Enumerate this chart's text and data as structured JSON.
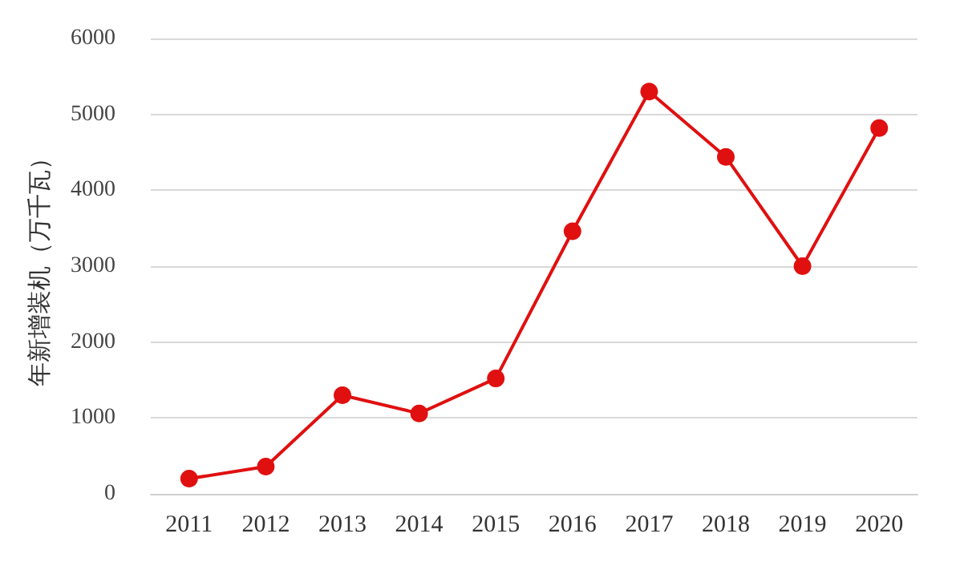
{
  "chart_data": {
    "type": "line",
    "ylabel": "年新增装机（万千瓦）",
    "categories": [
      "2011",
      "2012",
      "2013",
      "2014",
      "2015",
      "2016",
      "2017",
      "2018",
      "2019",
      "2020"
    ],
    "series": [
      {
        "color": "#e01010",
        "values": [
          200,
          360,
          1300,
          1060,
          1520,
          3460,
          5300,
          4440,
          3000,
          4820
        ]
      }
    ],
    "ylim": [
      0,
      6000
    ],
    "yticks": [
      0,
      1000,
      2000,
      3000,
      4000,
      5000,
      6000
    ],
    "grid": "y",
    "marker": "circle",
    "line_style": "solid"
  }
}
